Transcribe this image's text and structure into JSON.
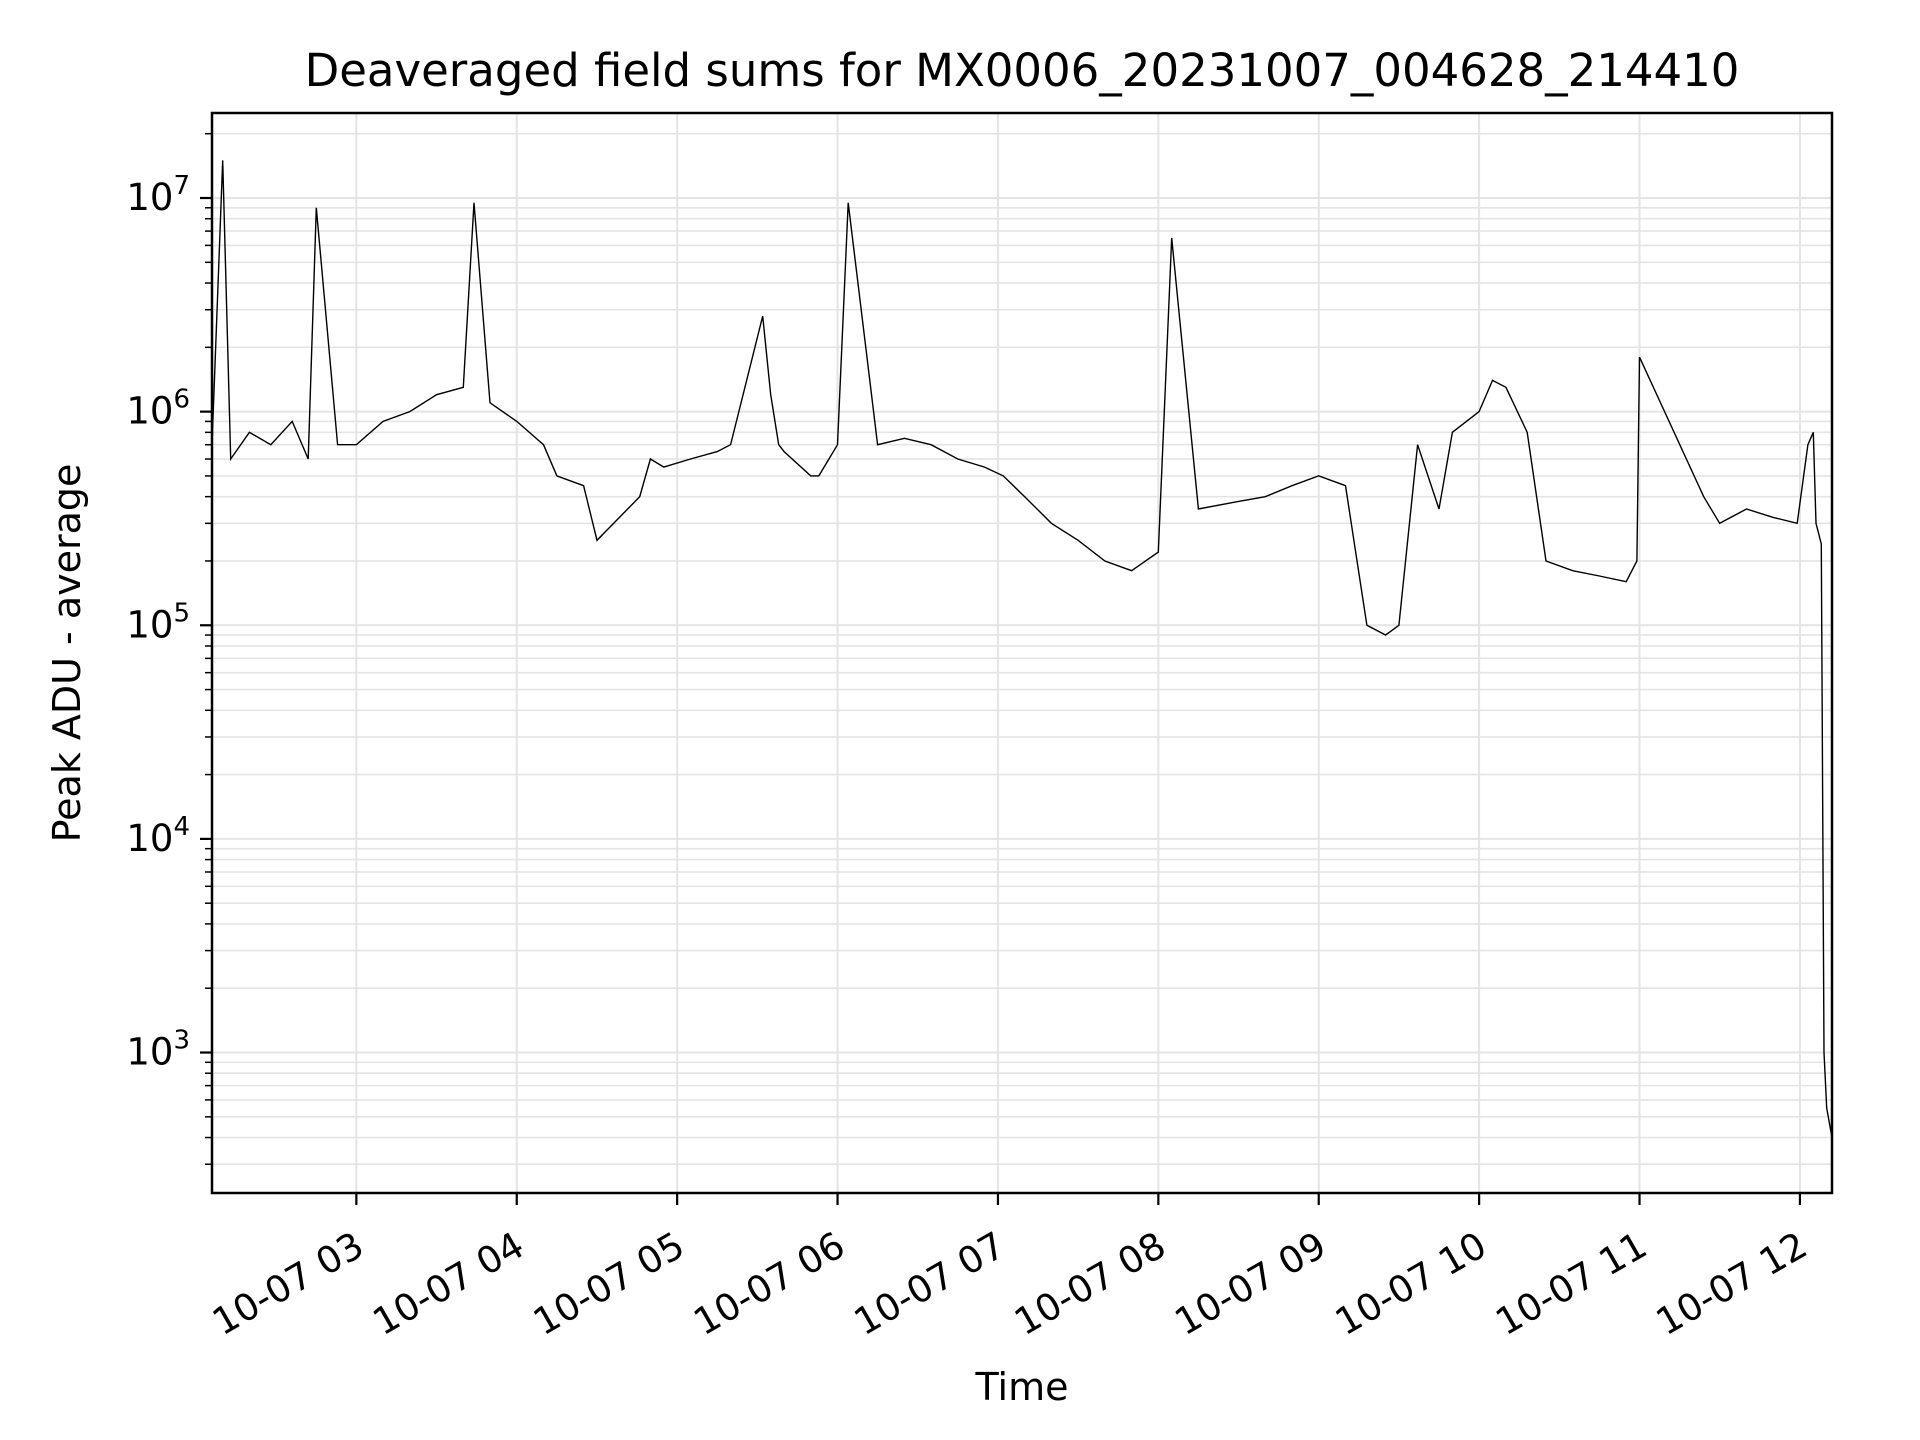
{
  "chart_data": {
    "type": "line",
    "title": "Deaveraged field sums for MX0006_20231007_004628_214410",
    "xlabel": "Time",
    "ylabel": "Peak ADU - average",
    "yscale": "log",
    "ylim": [
      220,
      25000000
    ],
    "xlim": [
      "2023-10-07T02:06",
      "2023-10-07T12:12"
    ],
    "grid": true,
    "line_color": "#000000",
    "grid_color": "#e4e4e4",
    "x_ticks": [
      {
        "value": "2023-10-07T03:00",
        "label": "10-07 03"
      },
      {
        "value": "2023-10-07T04:00",
        "label": "10-07 04"
      },
      {
        "value": "2023-10-07T05:00",
        "label": "10-07 05"
      },
      {
        "value": "2023-10-07T06:00",
        "label": "10-07 06"
      },
      {
        "value": "2023-10-07T07:00",
        "label": "10-07 07"
      },
      {
        "value": "2023-10-07T08:00",
        "label": "10-07 08"
      },
      {
        "value": "2023-10-07T09:00",
        "label": "10-07 09"
      },
      {
        "value": "2023-10-07T10:00",
        "label": "10-07 10"
      },
      {
        "value": "2023-10-07T11:00",
        "label": "10-07 11"
      },
      {
        "value": "2023-10-07T12:00",
        "label": "10-07 12"
      }
    ],
    "y_ticks": [
      {
        "value": 1000,
        "base": "10",
        "exp": "3"
      },
      {
        "value": 10000,
        "base": "10",
        "exp": "4"
      },
      {
        "value": 100000,
        "base": "10",
        "exp": "5"
      },
      {
        "value": 1000000,
        "base": "10",
        "exp": "6"
      },
      {
        "value": 10000000,
        "base": "10",
        "exp": "7"
      }
    ],
    "series": [
      {
        "values_note_removed": true,
        "x": [
          "2023-10-07T02:06",
          "2023-10-07T02:10",
          "2023-10-07T02:13",
          "2023-10-07T02:20",
          "2023-10-07T02:28",
          "2023-10-07T02:36",
          "2023-10-07T02:42",
          "2023-10-07T02:45",
          "2023-10-07T02:53",
          "2023-10-07T03:00",
          "2023-10-07T03:10",
          "2023-10-07T03:20",
          "2023-10-07T03:30",
          "2023-10-07T03:40",
          "2023-10-07T03:44",
          "2023-10-07T03:50",
          "2023-10-07T04:00",
          "2023-10-07T04:10",
          "2023-10-07T04:15",
          "2023-10-07T04:25",
          "2023-10-07T04:30",
          "2023-10-07T04:46",
          "2023-10-07T04:50",
          "2023-10-07T04:55",
          "2023-10-07T05:05",
          "2023-10-07T05:15",
          "2023-10-07T05:20",
          "2023-10-07T05:32",
          "2023-10-07T05:35",
          "2023-10-07T05:38",
          "2023-10-07T05:40",
          "2023-10-07T05:50",
          "2023-10-07T05:53",
          "2023-10-07T06:00",
          "2023-10-07T06:04",
          "2023-10-07T06:15",
          "2023-10-07T06:25",
          "2023-10-07T06:35",
          "2023-10-07T06:45",
          "2023-10-07T06:55",
          "2023-10-07T07:02",
          "2023-10-07T07:10",
          "2023-10-07T07:20",
          "2023-10-07T07:30",
          "2023-10-07T07:40",
          "2023-10-07T07:50",
          "2023-10-07T08:00",
          "2023-10-07T08:05",
          "2023-10-07T08:15",
          "2023-10-07T08:30",
          "2023-10-07T08:40",
          "2023-10-07T08:50",
          "2023-10-07T09:00",
          "2023-10-07T09:10",
          "2023-10-07T09:18",
          "2023-10-07T09:25",
          "2023-10-07T09:30",
          "2023-10-07T09:37",
          "2023-10-07T09:45",
          "2023-10-07T09:50",
          "2023-10-07T10:00",
          "2023-10-07T10:05",
          "2023-10-07T10:10",
          "2023-10-07T10:18",
          "2023-10-07T10:25",
          "2023-10-07T10:35",
          "2023-10-07T10:45",
          "2023-10-07T10:55",
          "2023-10-07T10:59",
          "2023-10-07T11:00",
          "2023-10-07T11:24",
          "2023-10-07T11:30",
          "2023-10-07T11:40",
          "2023-10-07T11:50",
          "2023-10-07T11:59",
          "2023-10-07T12:03",
          "2023-10-07T12:05",
          "2023-10-07T12:06",
          "2023-10-07T12:08",
          "2023-10-07T12:09",
          "2023-10-07T12:10",
          "2023-10-07T12:12"
        ],
        "values": [
          700000,
          15000000,
          600000,
          800000,
          700000,
          900000,
          600000,
          9000000,
          700000,
          700000,
          900000,
          1000000,
          1200000,
          1300000,
          9500000,
          1100000,
          900000,
          700000,
          500000,
          450000,
          250000,
          400000,
          600000,
          550000,
          600000,
          650000,
          700000,
          2800000,
          1200000,
          700000,
          650000,
          500000,
          500000,
          700000,
          9500000,
          700000,
          750000,
          700000,
          600000,
          550000,
          500000,
          400000,
          300000,
          250000,
          200000,
          180000,
          220000,
          6500000,
          350000,
          380000,
          400000,
          450000,
          500000,
          450000,
          100000,
          90000,
          100000,
          700000,
          350000,
          800000,
          1000000,
          1400000,
          1300000,
          800000,
          200000,
          180000,
          170000,
          160000,
          200000,
          1800000,
          400000,
          300000,
          350000,
          320000,
          300000,
          700000,
          800000,
          300000,
          240000,
          1000,
          550,
          400
        ]
      }
    ]
  }
}
